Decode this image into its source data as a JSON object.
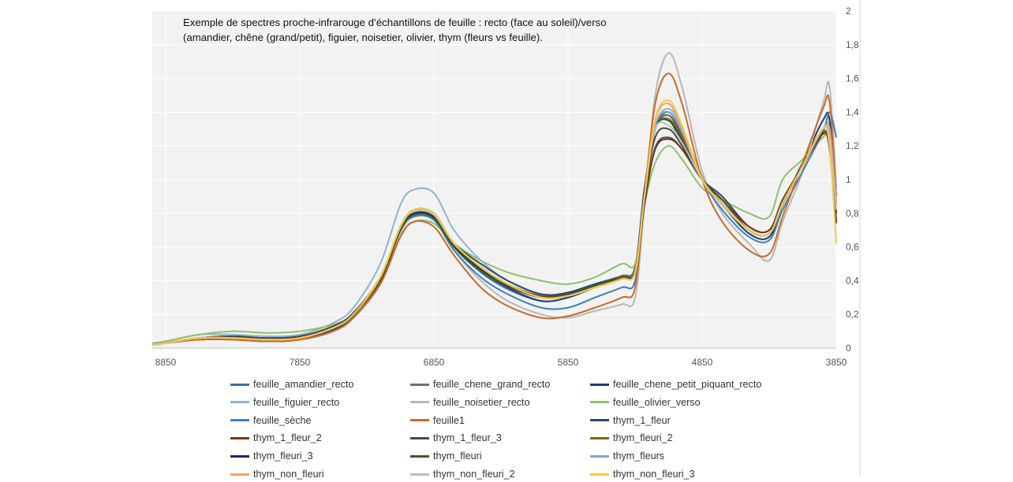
{
  "chart_data": {
    "type": "line",
    "title": "Exemple de spectres proche-infrarouge d’échantillons de feuille  : recto (face au soleil)/verso (amandier, chêne (grand/petit), figuier, noisetier, olivier, thym (fleurs vs feuille).",
    "title_lines": [
      "Exemple de spectres proche-infrarouge d’échantillons de feuille  : recto (face au soleil)/verso",
      "(amandier, chêne (grand/petit), figuier, noisetier, olivier, thym (fleurs vs feuille)."
    ],
    "xlabel": "",
    "ylabel": "",
    "x_reversed": true,
    "xlim": [
      3850,
      8950
    ],
    "ylim": [
      0,
      2
    ],
    "x_ticks": [
      "8850",
      "7850",
      "6850",
      "5850",
      "4850",
      "3850"
    ],
    "y_ticks": [
      "0",
      "0,2",
      "0,4",
      "0,6",
      "0,8",
      "1",
      "1,2",
      "1,4",
      "1,6",
      "1,8",
      "2"
    ],
    "grid": true,
    "legend_position": "bottom",
    "x": [
      8950,
      8850,
      8600,
      8350,
      8100,
      7850,
      7600,
      7450,
      7250,
      7100,
      7000,
      6850,
      6700,
      6500,
      6300,
      6050,
      5850,
      5650,
      5450,
      5350,
      5280,
      5200,
      5100,
      5000,
      4850,
      4700,
      4500,
      4350,
      4250,
      4100,
      3950,
      3900,
      3850
    ],
    "series": [
      {
        "name": "feuille_amandier_recto",
        "color": "#3e6fa8",
        "values": [
          0.02,
          0.03,
          0.06,
          0.06,
          0.05,
          0.06,
          0.12,
          0.2,
          0.42,
          0.7,
          0.8,
          0.78,
          0.6,
          0.45,
          0.35,
          0.28,
          0.3,
          0.36,
          0.42,
          0.48,
          0.95,
          1.3,
          1.38,
          1.25,
          1.0,
          0.85,
          0.7,
          0.68,
          0.85,
          1.1,
          1.3,
          1.25,
          0.85
        ]
      },
      {
        "name": "feuille_chene_grand_recto",
        "color": "#707070",
        "values": [
          0.02,
          0.03,
          0.06,
          0.06,
          0.05,
          0.06,
          0.12,
          0.2,
          0.42,
          0.72,
          0.82,
          0.8,
          0.62,
          0.48,
          0.38,
          0.3,
          0.32,
          0.38,
          0.43,
          0.48,
          0.95,
          1.3,
          1.36,
          1.24,
          1.0,
          0.85,
          0.7,
          0.68,
          0.85,
          1.1,
          1.3,
          1.3,
          0.9
        ]
      },
      {
        "name": "feuille_chene_petit_piquant_recto",
        "color": "#1f3f7a",
        "values": [
          0.02,
          0.03,
          0.05,
          0.05,
          0.04,
          0.05,
          0.11,
          0.19,
          0.4,
          0.7,
          0.8,
          0.77,
          0.6,
          0.46,
          0.36,
          0.28,
          0.3,
          0.36,
          0.41,
          0.46,
          0.93,
          1.32,
          1.4,
          1.27,
          1.0,
          0.85,
          0.68,
          0.66,
          0.85,
          1.1,
          1.35,
          1.35,
          0.85
        ]
      },
      {
        "name": "feuille_figuier_recto",
        "color": "#8fb3d9",
        "values": [
          0.03,
          0.04,
          0.08,
          0.08,
          0.07,
          0.08,
          0.15,
          0.24,
          0.5,
          0.85,
          0.94,
          0.92,
          0.7,
          0.52,
          0.4,
          0.32,
          0.33,
          0.38,
          0.42,
          0.46,
          0.9,
          1.32,
          1.42,
          1.3,
          1.02,
          0.85,
          0.7,
          0.68,
          0.85,
          1.08,
          1.3,
          1.3,
          0.88
        ]
      },
      {
        "name": "feuille_noisetier_recto",
        "color": "#b8b8b8",
        "values": [
          0.02,
          0.03,
          0.05,
          0.05,
          0.04,
          0.05,
          0.1,
          0.18,
          0.38,
          0.68,
          0.78,
          0.76,
          0.58,
          0.4,
          0.28,
          0.2,
          0.18,
          0.22,
          0.26,
          0.3,
          0.85,
          1.5,
          1.75,
          1.55,
          1.05,
          0.8,
          0.62,
          0.52,
          0.75,
          1.05,
          1.45,
          1.55,
          0.95
        ]
      },
      {
        "name": "feuille_olivier_verso",
        "color": "#8fc06a",
        "values": [
          0.02,
          0.04,
          0.08,
          0.1,
          0.09,
          0.1,
          0.14,
          0.2,
          0.38,
          0.66,
          0.75,
          0.74,
          0.62,
          0.52,
          0.45,
          0.4,
          0.38,
          0.42,
          0.5,
          0.5,
          0.85,
          1.1,
          1.2,
          1.12,
          0.95,
          0.88,
          0.8,
          0.78,
          1.0,
          1.12,
          1.25,
          1.25,
          0.9
        ]
      },
      {
        "name": "feuille_sèche",
        "color": "#3a7fc1",
        "values": [
          0.02,
          0.03,
          0.06,
          0.06,
          0.05,
          0.06,
          0.12,
          0.2,
          0.42,
          0.7,
          0.78,
          0.76,
          0.58,
          0.42,
          0.32,
          0.24,
          0.24,
          0.3,
          0.36,
          0.4,
          0.88,
          1.3,
          1.4,
          1.28,
          1.0,
          0.82,
          0.66,
          0.64,
          0.82,
          1.05,
          1.28,
          1.4,
          1.25
        ]
      },
      {
        "name": "feuille1",
        "color": "#c96a2c",
        "values": [
          0.02,
          0.03,
          0.05,
          0.05,
          0.04,
          0.05,
          0.1,
          0.18,
          0.38,
          0.66,
          0.75,
          0.72,
          0.55,
          0.36,
          0.25,
          0.18,
          0.19,
          0.24,
          0.3,
          0.36,
          0.9,
          1.45,
          1.63,
          1.45,
          1.0,
          0.75,
          0.58,
          0.56,
          0.78,
          1.1,
          1.42,
          1.46,
          0.9
        ]
      },
      {
        "name": "thym_1_fleur",
        "color": "#2a4a6b",
        "values": [
          0.02,
          0.03,
          0.06,
          0.07,
          0.06,
          0.07,
          0.13,
          0.2,
          0.4,
          0.7,
          0.8,
          0.78,
          0.62,
          0.5,
          0.4,
          0.32,
          0.33,
          0.38,
          0.42,
          0.45,
          0.85,
          1.18,
          1.24,
          1.18,
          1.0,
          0.9,
          0.72,
          0.7,
          0.88,
          1.08,
          1.28,
          1.2,
          0.75
        ]
      },
      {
        "name": "thym_1_fleur_2",
        "color": "#7a3b14",
        "values": [
          0.02,
          0.03,
          0.06,
          0.07,
          0.06,
          0.07,
          0.13,
          0.2,
          0.4,
          0.7,
          0.8,
          0.78,
          0.62,
          0.48,
          0.38,
          0.31,
          0.32,
          0.37,
          0.42,
          0.45,
          0.86,
          1.19,
          1.25,
          1.18,
          1.0,
          0.88,
          0.72,
          0.7,
          0.88,
          1.08,
          1.27,
          1.18,
          0.74
        ]
      },
      {
        "name": "thym_1_fleur_3",
        "color": "#4a4a4a",
        "values": [
          0.02,
          0.03,
          0.06,
          0.07,
          0.06,
          0.07,
          0.13,
          0.21,
          0.42,
          0.72,
          0.82,
          0.8,
          0.62,
          0.48,
          0.38,
          0.3,
          0.32,
          0.37,
          0.42,
          0.46,
          0.9,
          1.25,
          1.3,
          1.2,
          1.0,
          0.88,
          0.7,
          0.68,
          0.86,
          1.08,
          1.28,
          1.2,
          0.76
        ]
      },
      {
        "name": "thym_fleuri_2",
        "color": "#8a6414",
        "values": [
          0.02,
          0.03,
          0.06,
          0.06,
          0.05,
          0.06,
          0.12,
          0.2,
          0.41,
          0.71,
          0.8,
          0.78,
          0.61,
          0.47,
          0.37,
          0.3,
          0.31,
          0.37,
          0.42,
          0.46,
          0.9,
          1.3,
          1.38,
          1.25,
          1.0,
          0.86,
          0.7,
          0.68,
          0.86,
          1.08,
          1.3,
          1.25,
          0.8
        ]
      },
      {
        "name": "thym_fleuri_3",
        "color": "#1e2a5a",
        "values": [
          0.02,
          0.03,
          0.06,
          0.06,
          0.05,
          0.06,
          0.12,
          0.2,
          0.41,
          0.71,
          0.8,
          0.78,
          0.61,
          0.47,
          0.37,
          0.3,
          0.31,
          0.37,
          0.42,
          0.46,
          0.9,
          1.3,
          1.35,
          1.23,
          1.0,
          0.86,
          0.7,
          0.68,
          0.86,
          1.08,
          1.3,
          1.25,
          0.8
        ]
      },
      {
        "name": "thym_fleuri",
        "color": "#3d5a1e",
        "values": [
          0.02,
          0.03,
          0.06,
          0.06,
          0.05,
          0.06,
          0.12,
          0.2,
          0.41,
          0.7,
          0.79,
          0.77,
          0.6,
          0.46,
          0.37,
          0.3,
          0.31,
          0.37,
          0.42,
          0.46,
          0.9,
          1.3,
          1.35,
          1.22,
          1.0,
          0.86,
          0.7,
          0.68,
          0.86,
          1.08,
          1.3,
          1.24,
          0.8
        ]
      },
      {
        "name": "thym_fleurs",
        "color": "#7fa8d8",
        "values": [
          0.02,
          0.03,
          0.06,
          0.06,
          0.05,
          0.06,
          0.12,
          0.2,
          0.42,
          0.72,
          0.82,
          0.8,
          0.62,
          0.48,
          0.38,
          0.3,
          0.31,
          0.36,
          0.41,
          0.45,
          0.9,
          1.32,
          1.4,
          1.28,
          1.0,
          0.85,
          0.7,
          0.68,
          0.85,
          1.08,
          1.3,
          1.28,
          0.85
        ]
      },
      {
        "name": "thym_non_fleuri",
        "color": "#f2a26a",
        "values": [
          0.02,
          0.03,
          0.06,
          0.06,
          0.05,
          0.06,
          0.12,
          0.2,
          0.42,
          0.72,
          0.81,
          0.79,
          0.62,
          0.48,
          0.38,
          0.3,
          0.31,
          0.36,
          0.41,
          0.45,
          0.9,
          1.35,
          1.45,
          1.3,
          1.0,
          0.85,
          0.7,
          0.68,
          0.86,
          1.08,
          1.3,
          1.28,
          0.85
        ]
      },
      {
        "name": "thym_non_fleuri_2",
        "color": "#bdbdbd",
        "values": [
          0.02,
          0.03,
          0.06,
          0.06,
          0.05,
          0.06,
          0.12,
          0.2,
          0.42,
          0.72,
          0.81,
          0.79,
          0.62,
          0.48,
          0.38,
          0.3,
          0.31,
          0.36,
          0.41,
          0.45,
          0.9,
          1.3,
          1.32,
          1.22,
          1.0,
          0.85,
          0.7,
          0.68,
          0.86,
          1.08,
          1.3,
          1.25,
          0.82
        ]
      },
      {
        "name": "thym_non_fleuri_3",
        "color": "#f5c842",
        "values": [
          0.02,
          0.03,
          0.06,
          0.06,
          0.05,
          0.06,
          0.12,
          0.2,
          0.42,
          0.72,
          0.82,
          0.8,
          0.62,
          0.48,
          0.38,
          0.3,
          0.31,
          0.36,
          0.41,
          0.45,
          0.9,
          1.36,
          1.47,
          1.32,
          1.0,
          0.86,
          0.7,
          0.68,
          0.86,
          1.08,
          1.3,
          1.2,
          0.62
        ]
      }
    ]
  }
}
